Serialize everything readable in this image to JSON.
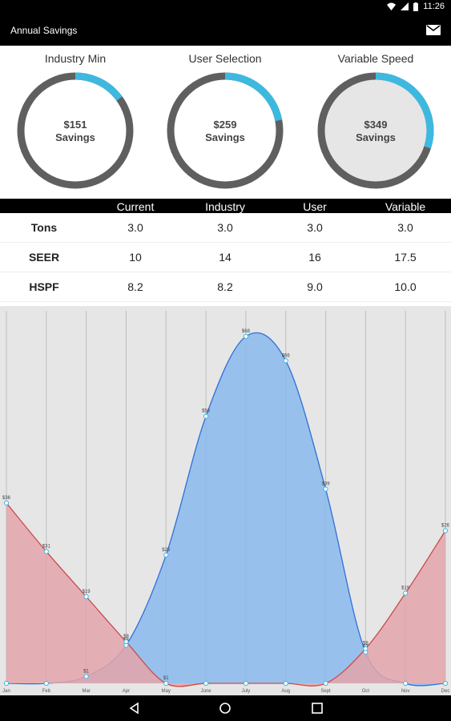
{
  "app": {
    "title": "Annual Savings",
    "mail_icon": "mail-icon"
  },
  "status": {
    "time": "11:26"
  },
  "colors": {
    "accent": "#3db9e0",
    "ring": "#5f5f5f",
    "blue_fill": "#8ab8ec",
    "blue_line": "#2f6fd8",
    "red_fill": "#e3a4aa",
    "red_line": "#c84b4b"
  },
  "gauges": [
    {
      "title": "Industry Min",
      "value": "$151",
      "label": "Savings",
      "fraction": 0.15,
      "inner_fill": "#ffffff"
    },
    {
      "title": "User Selection",
      "value": "$259",
      "label": "Savings",
      "fraction": 0.22,
      "inner_fill": "#ffffff"
    },
    {
      "title": "Variable Speed",
      "value": "$349",
      "label": "Savings",
      "fraction": 0.3,
      "inner_fill": "#e6e6e6"
    }
  ],
  "table": {
    "headers": [
      "",
      "Current",
      "Industry",
      "User",
      "Variable"
    ],
    "rows": [
      {
        "label": "Tons",
        "values": [
          "3.0",
          "3.0",
          "3.0",
          "3.0"
        ]
      },
      {
        "label": "SEER",
        "values": [
          "10",
          "14",
          "16",
          "17.5"
        ]
      },
      {
        "label": "HSPF",
        "values": [
          "8.2",
          "8.2",
          "9.0",
          "10.0"
        ]
      }
    ]
  },
  "chart_data": {
    "type": "area",
    "categories": [
      "Jan",
      "Feb",
      "Mar",
      "Apr",
      "May",
      "June",
      "July",
      "Aug",
      "Sept",
      "Oct",
      "Nov",
      "Dec"
    ],
    "ylim": [
      0,
      100
    ],
    "series": [
      {
        "values": [
          0,
          0,
          2,
          11,
          37,
          77,
          100,
          93,
          56,
          9,
          0,
          0
        ],
        "labels": [
          "",
          "",
          "$1",
          "$8",
          "$26",
          "$56",
          "$68",
          "$66",
          "$39",
          "$7",
          "",
          ""
        ]
      },
      {
        "values": [
          52,
          38,
          25,
          12,
          0,
          0,
          0,
          0,
          0,
          10,
          26,
          44
        ],
        "labels": [
          "$36",
          "$31",
          "$19",
          "$8",
          "$1",
          "",
          "",
          "",
          "",
          "$8",
          "$19",
          "$26"
        ]
      }
    ]
  }
}
